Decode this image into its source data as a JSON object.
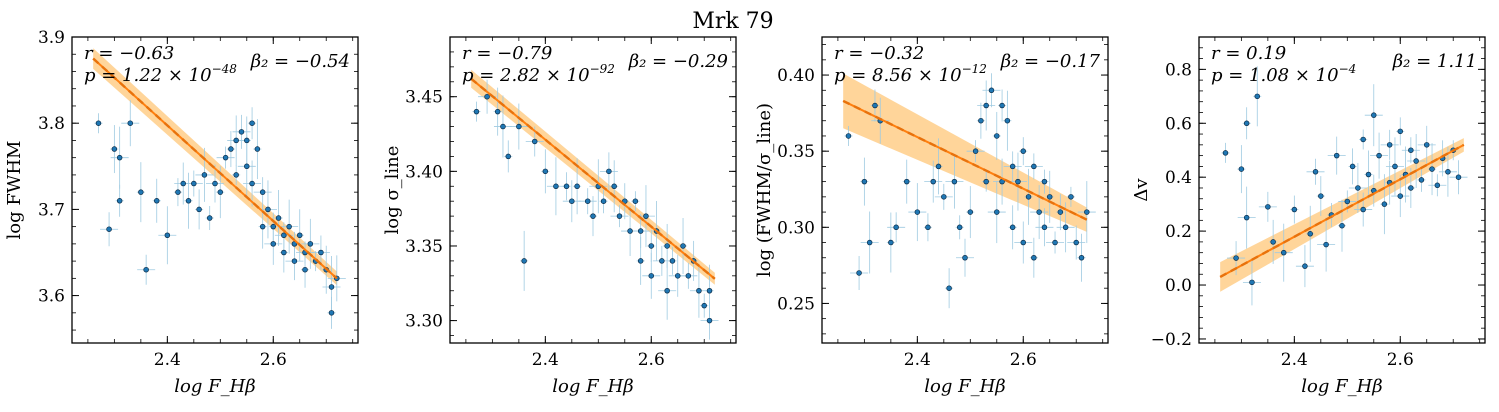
{
  "title": "Mrk 79",
  "colors": {
    "points": "#1f77b4",
    "errorbars": "#9ecae1",
    "fit_line": "#ff7f0e",
    "band": "#ffb347"
  },
  "chart_data": [
    {
      "type": "scatter",
      "xlabel": "log F_Hβ",
      "ylabel": "log FWHM",
      "xlim": [
        2.22,
        2.76
      ],
      "ylim": [
        3.545,
        3.9
      ],
      "xticks": [
        "2.4",
        "2.6"
      ],
      "yticks": [
        "3.6",
        "3.7",
        "3.8",
        "3.9"
      ],
      "annotations": {
        "r": "r = −0.63",
        "p": "p = 1.22 × 10",
        "p_exp": "−48",
        "beta": "β₂ = −0.54"
      },
      "fit": {
        "x": [
          2.26,
          2.72
        ],
        "y": [
          3.875,
          3.62
        ]
      },
      "band_halfwidth": [
        0.012,
        0.008
      ],
      "points": [
        [
          2.27,
          3.8
        ],
        [
          2.29,
          3.677
        ],
        [
          2.3,
          3.77
        ],
        [
          2.31,
          3.76
        ],
        [
          2.31,
          3.71
        ],
        [
          2.33,
          3.8
        ],
        [
          2.35,
          3.72
        ],
        [
          2.36,
          3.63
        ],
        [
          2.38,
          3.71
        ],
        [
          2.4,
          3.67
        ],
        [
          2.42,
          3.72
        ],
        [
          2.43,
          3.73
        ],
        [
          2.44,
          3.71
        ],
        [
          2.45,
          3.73
        ],
        [
          2.46,
          3.7
        ],
        [
          2.47,
          3.74
        ],
        [
          2.48,
          3.69
        ],
        [
          2.49,
          3.73
        ],
        [
          2.5,
          3.72
        ],
        [
          2.51,
          3.76
        ],
        [
          2.52,
          3.77
        ],
        [
          2.53,
          3.78
        ],
        [
          2.53,
          3.74
        ],
        [
          2.54,
          3.79
        ],
        [
          2.55,
          3.78
        ],
        [
          2.55,
          3.75
        ],
        [
          2.56,
          3.8
        ],
        [
          2.56,
          3.73
        ],
        [
          2.57,
          3.77
        ],
        [
          2.58,
          3.72
        ],
        [
          2.58,
          3.68
        ],
        [
          2.59,
          3.7
        ],
        [
          2.6,
          3.68
        ],
        [
          2.6,
          3.66
        ],
        [
          2.61,
          3.69
        ],
        [
          2.62,
          3.67
        ],
        [
          2.62,
          3.65
        ],
        [
          2.63,
          3.68
        ],
        [
          2.64,
          3.66
        ],
        [
          2.64,
          3.64
        ],
        [
          2.65,
          3.67
        ],
        [
          2.66,
          3.65
        ],
        [
          2.66,
          3.63
        ],
        [
          2.67,
          3.66
        ],
        [
          2.68,
          3.64
        ],
        [
          2.69,
          3.65
        ],
        [
          2.7,
          3.63
        ],
        [
          2.71,
          3.61
        ],
        [
          2.71,
          3.58
        ],
        [
          2.72,
          3.62
        ]
      ]
    },
    {
      "type": "scatter",
      "xlabel": "log F_Hβ",
      "ylabel": "log σ_line",
      "xlim": [
        2.22,
        2.76
      ],
      "ylim": [
        3.285,
        3.49
      ],
      "xticks": [
        "2.4",
        "2.6"
      ],
      "yticks": [
        "3.30",
        "3.35",
        "3.40",
        "3.45"
      ],
      "annotations": {
        "r": "r = −0.79",
        "p": "p = 2.82 × 10",
        "p_exp": "−92",
        "beta": "β₂ = −0.29"
      },
      "fit": {
        "x": [
          2.26,
          2.72
        ],
        "y": [
          3.462,
          3.328
        ]
      },
      "band_halfwidth": [
        0.006,
        0.004
      ],
      "points": [
        [
          2.27,
          3.44
        ],
        [
          2.29,
          3.45
        ],
        [
          2.31,
          3.44
        ],
        [
          2.32,
          3.43
        ],
        [
          2.33,
          3.41
        ],
        [
          2.35,
          3.43
        ],
        [
          2.36,
          3.34
        ],
        [
          2.38,
          3.42
        ],
        [
          2.4,
          3.4
        ],
        [
          2.42,
          3.39
        ],
        [
          2.44,
          3.39
        ],
        [
          2.45,
          3.38
        ],
        [
          2.46,
          3.39
        ],
        [
          2.48,
          3.38
        ],
        [
          2.49,
          3.37
        ],
        [
          2.5,
          3.39
        ],
        [
          2.51,
          3.38
        ],
        [
          2.52,
          3.4
        ],
        [
          2.53,
          3.39
        ],
        [
          2.54,
          3.37
        ],
        [
          2.55,
          3.38
        ],
        [
          2.56,
          3.36
        ],
        [
          2.57,
          3.38
        ],
        [
          2.58,
          3.36
        ],
        [
          2.58,
          3.34
        ],
        [
          2.59,
          3.37
        ],
        [
          2.6,
          3.35
        ],
        [
          2.6,
          3.33
        ],
        [
          2.61,
          3.36
        ],
        [
          2.62,
          3.34
        ],
        [
          2.63,
          3.35
        ],
        [
          2.63,
          3.32
        ],
        [
          2.64,
          3.34
        ],
        [
          2.65,
          3.33
        ],
        [
          2.66,
          3.35
        ],
        [
          2.67,
          3.33
        ],
        [
          2.68,
          3.34
        ],
        [
          2.69,
          3.32
        ],
        [
          2.7,
          3.31
        ],
        [
          2.71,
          3.3
        ],
        [
          2.71,
          3.32
        ]
      ]
    },
    {
      "type": "scatter",
      "xlabel": "log F_Hβ",
      "ylabel": "log (FWHM/σ_line)",
      "xlim": [
        2.22,
        2.76
      ],
      "ylim": [
        0.224,
        0.425
      ],
      "xticks": [
        "2.4",
        "2.6"
      ],
      "yticks": [
        "0.25",
        "0.30",
        "0.35",
        "0.40"
      ],
      "annotations": {
        "r": "r = −0.32",
        "p": "p = 8.56 × 10",
        "p_exp": "−12",
        "beta": "β₂ = −0.17"
      },
      "fit": {
        "x": [
          2.26,
          2.72
        ],
        "y": [
          0.383,
          0.305
        ]
      },
      "band_halfwidth": [
        0.018,
        0.008
      ],
      "points": [
        [
          2.27,
          0.36
        ],
        [
          2.29,
          0.27
        ],
        [
          2.3,
          0.33
        ],
        [
          2.31,
          0.29
        ],
        [
          2.32,
          0.38
        ],
        [
          2.33,
          0.37
        ],
        [
          2.35,
          0.29
        ],
        [
          2.36,
          0.3
        ],
        [
          2.38,
          0.33
        ],
        [
          2.4,
          0.31
        ],
        [
          2.42,
          0.3
        ],
        [
          2.43,
          0.33
        ],
        [
          2.44,
          0.34
        ],
        [
          2.45,
          0.32
        ],
        [
          2.46,
          0.26
        ],
        [
          2.47,
          0.33
        ],
        [
          2.48,
          0.3
        ],
        [
          2.49,
          0.28
        ],
        [
          2.5,
          0.31
        ],
        [
          2.51,
          0.35
        ],
        [
          2.52,
          0.37
        ],
        [
          2.53,
          0.38
        ],
        [
          2.53,
          0.33
        ],
        [
          2.54,
          0.39
        ],
        [
          2.55,
          0.36
        ],
        [
          2.55,
          0.31
        ],
        [
          2.56,
          0.38
        ],
        [
          2.56,
          0.33
        ],
        [
          2.57,
          0.37
        ],
        [
          2.58,
          0.34
        ],
        [
          2.58,
          0.3
        ],
        [
          2.59,
          0.33
        ],
        [
          2.6,
          0.35
        ],
        [
          2.6,
          0.29
        ],
        [
          2.61,
          0.32
        ],
        [
          2.62,
          0.34
        ],
        [
          2.62,
          0.28
        ],
        [
          2.63,
          0.31
        ],
        [
          2.64,
          0.33
        ],
        [
          2.64,
          0.3
        ],
        [
          2.65,
          0.32
        ],
        [
          2.66,
          0.29
        ],
        [
          2.67,
          0.31
        ],
        [
          2.68,
          0.3
        ],
        [
          2.69,
          0.32
        ],
        [
          2.7,
          0.29
        ],
        [
          2.71,
          0.28
        ],
        [
          2.72,
          0.31
        ]
      ]
    },
    {
      "type": "scatter",
      "xlabel": "log F_Hβ",
      "ylabel": "Δv",
      "xlim": [
        2.22,
        2.76
      ],
      "ylim": [
        -0.215,
        0.92
      ],
      "xticks": [
        "2.4",
        "2.6"
      ],
      "yticks": [
        "−0.2",
        "0.0",
        "0.2",
        "0.4",
        "0.6",
        "0.8"
      ],
      "annotations": {
        "r": "r = 0.19",
        "p": "p = 1.08 × 10",
        "p_exp": "−4",
        "beta": "β₂ = 1.11"
      },
      "fit": {
        "x": [
          2.26,
          2.72
        ],
        "y": [
          0.03,
          0.52
        ]
      },
      "band_halfwidth": [
        0.055,
        0.025
      ],
      "points": [
        [
          2.27,
          0.49
        ],
        [
          2.29,
          0.1
        ],
        [
          2.3,
          0.43
        ],
        [
          2.31,
          0.25
        ],
        [
          2.31,
          0.6
        ],
        [
          2.32,
          0.01
        ],
        [
          2.33,
          0.7
        ],
        [
          2.35,
          0.29
        ],
        [
          2.36,
          0.16
        ],
        [
          2.38,
          0.12
        ],
        [
          2.4,
          0.28
        ],
        [
          2.42,
          0.07
        ],
        [
          2.43,
          0.19
        ],
        [
          2.44,
          0.42
        ],
        [
          2.45,
          0.33
        ],
        [
          2.46,
          0.15
        ],
        [
          2.47,
          0.26
        ],
        [
          2.48,
          0.48
        ],
        [
          2.49,
          0.22
        ],
        [
          2.5,
          0.31
        ],
        [
          2.51,
          0.44
        ],
        [
          2.52,
          0.36
        ],
        [
          2.53,
          0.54
        ],
        [
          2.53,
          0.28
        ],
        [
          2.54,
          0.41
        ],
        [
          2.55,
          0.63
        ],
        [
          2.55,
          0.35
        ],
        [
          2.56,
          0.48
        ],
        [
          2.57,
          0.3
        ],
        [
          2.58,
          0.52
        ],
        [
          2.58,
          0.38
        ],
        [
          2.59,
          0.44
        ],
        [
          2.6,
          0.57
        ],
        [
          2.6,
          0.33
        ],
        [
          2.61,
          0.41
        ],
        [
          2.62,
          0.5
        ],
        [
          2.62,
          0.36
        ],
        [
          2.63,
          0.46
        ],
        [
          2.64,
          0.39
        ],
        [
          2.65,
          0.52
        ],
        [
          2.66,
          0.43
        ],
        [
          2.67,
          0.37
        ],
        [
          2.68,
          0.47
        ],
        [
          2.69,
          0.42
        ],
        [
          2.7,
          0.5
        ],
        [
          2.71,
          0.4
        ]
      ]
    }
  ]
}
